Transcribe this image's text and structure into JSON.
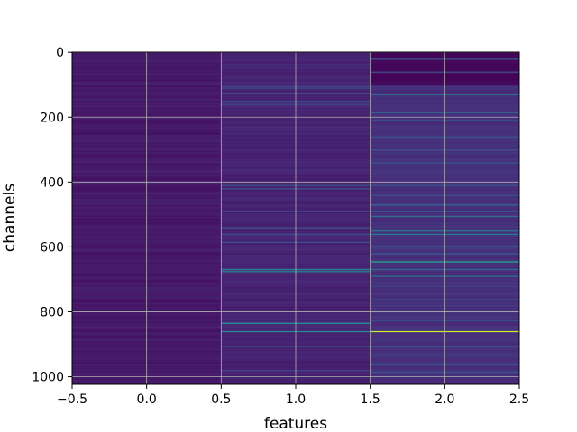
{
  "chart_data": {
    "type": "heatmap",
    "title": "",
    "xlabel": "features",
    "ylabel": "channels",
    "xlim": [
      -0.5,
      2.5
    ],
    "ylim": [
      1023.5,
      -0.5
    ],
    "x_ticks": [
      -0.5,
      0.0,
      0.5,
      1.0,
      1.5,
      2.0,
      2.5
    ],
    "x_tick_labels": [
      "−0.5",
      "0.0",
      "0.5",
      "1.0",
      "1.5",
      "2.0",
      "2.5"
    ],
    "y_ticks": [
      0,
      200,
      400,
      600,
      800,
      1000
    ],
    "y_tick_labels": [
      "0",
      "200",
      "400",
      "600",
      "800",
      "1000"
    ],
    "grid": true,
    "colormap": "viridis",
    "columns": 3,
    "rows": 1024,
    "background_level": [
      0.03,
      0.06,
      0.1
    ],
    "highlights": [
      {
        "col": 1,
        "rows": [
          105,
          110,
          125,
          150,
          160
        ],
        "value": 0.22
      },
      {
        "col": 1,
        "rows": [
          410,
          420,
          490,
          540,
          560,
          585
        ],
        "value": 0.25
      },
      {
        "col": 1,
        "rows": [
          668,
          675
        ],
        "value": 0.45
      },
      {
        "col": 1,
        "rows": [
          835,
          860
        ],
        "value": 0.5
      },
      {
        "col": 1,
        "rows": [
          905,
          980
        ],
        "value": 0.2
      },
      {
        "col": 2,
        "rows": [
          20,
          60
        ],
        "value": 0.25
      },
      {
        "col": 2,
        "rows": [
          130,
          185,
          210
        ],
        "value": 0.35
      },
      {
        "col": 2,
        "rows": [
          260,
          300,
          340,
          410,
          440
        ],
        "value": 0.25
      },
      {
        "col": 2,
        "rows": [
          470,
          490,
          505
        ],
        "value": 0.35
      },
      {
        "col": 2,
        "rows": [
          550,
          560
        ],
        "value": 0.4
      },
      {
        "col": 2,
        "rows": [
          598,
          620
        ],
        "value": 0.3
      },
      {
        "col": 2,
        "rows": [
          645
        ],
        "value": 0.6
      },
      {
        "col": 2,
        "rows": [
          668,
          690
        ],
        "value": 0.35
      },
      {
        "col": 2,
        "rows": [
          720,
          760,
          780,
          800
        ],
        "value": 0.2
      },
      {
        "col": 2,
        "rows": [
          825
        ],
        "value": 0.35
      },
      {
        "col": 2,
        "rows": [
          860
        ],
        "value": 0.95
      },
      {
        "col": 2,
        "rows": [
          880,
          905,
          935,
          960,
          985
        ],
        "value": 0.25
      }
    ],
    "dark_band": {
      "col": 2,
      "from_row": 0,
      "to_row": 100,
      "value": 0.0
    }
  }
}
